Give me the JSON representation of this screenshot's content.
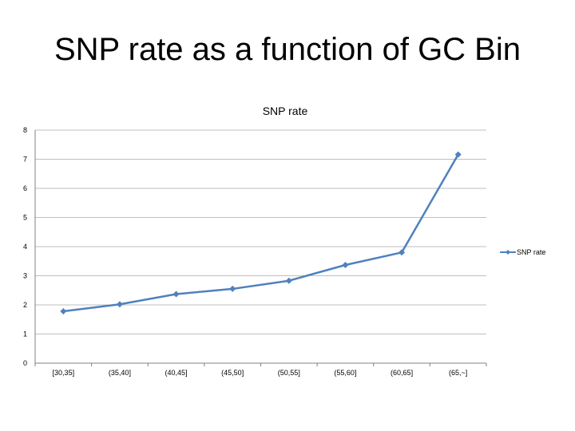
{
  "slide": {
    "title": "SNP rate as a function of GC Bin"
  },
  "colors": {
    "series": "#4F81BD",
    "grid": "#BFBFBF",
    "axis": "#808080"
  },
  "chart_data": {
    "type": "line",
    "title": "SNP rate",
    "xlabel": "",
    "ylabel": "",
    "categories": [
      "[30,35]",
      "(35,40]",
      "(40,45]",
      "(45,50]",
      "(50,55]",
      "(55,60]",
      "(60,65]",
      "(65,~]"
    ],
    "series": [
      {
        "name": "SNP rate",
        "values": [
          1.78,
          2.02,
          2.37,
          2.55,
          2.83,
          3.37,
          3.8,
          7.16
        ]
      }
    ],
    "ylim": [
      0,
      8
    ],
    "yticks": [
      "0",
      "1",
      "2",
      "3",
      "4",
      "5",
      "6",
      "7",
      "8"
    ],
    "grid": true,
    "legend": "right",
    "marker": "diamond"
  }
}
